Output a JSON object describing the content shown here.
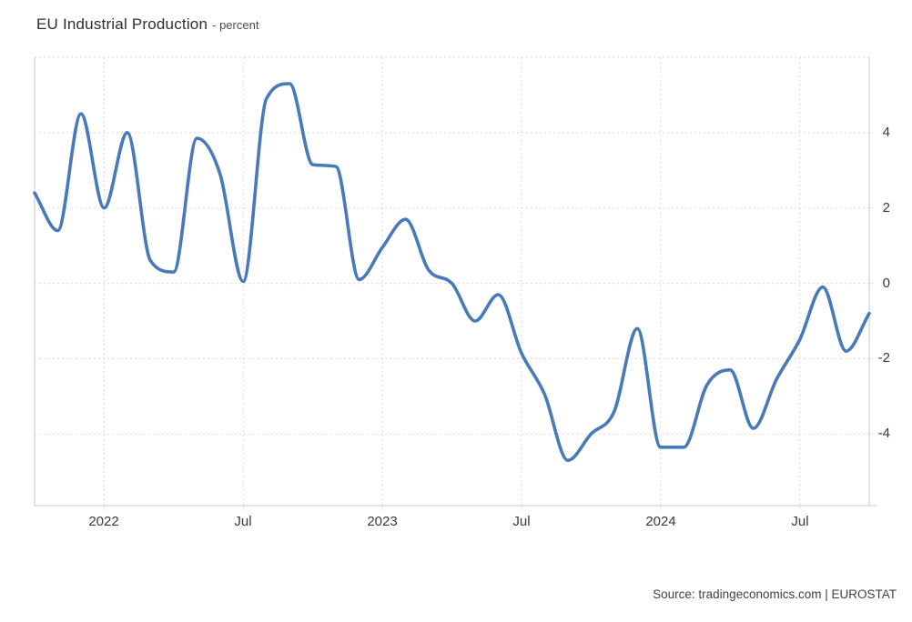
{
  "header": {
    "title": "EU Industrial Production",
    "subtitle": "- percent"
  },
  "footer": {
    "source": "Source: tradingeconomics.com | EUROSTAT"
  },
  "colors": {
    "line": "#4879ba",
    "grid": "#d9d9d9",
    "axis_border": "#e3e3e3",
    "background": "#ffffff",
    "tick_text": "#3a3a3a"
  },
  "chart_data": {
    "type": "line",
    "title": "EU Industrial Production",
    "unit": "percent",
    "xlabel": "",
    "ylabel": "percent",
    "grid": true,
    "legend": false,
    "ylim": [
      -5.9,
      6.0
    ],
    "grid_y_values": [
      6,
      4,
      2,
      0,
      -2,
      -4
    ],
    "y_ticks": [
      {
        "label": "4",
        "value": 4
      },
      {
        "label": "2",
        "value": 2
      },
      {
        "label": "0",
        "value": 0
      },
      {
        "label": "-2",
        "value": -2
      },
      {
        "label": "-4",
        "value": -4
      }
    ],
    "x_ticks": [
      {
        "label": "2022",
        "month_index": 3
      },
      {
        "label": "Jul",
        "month_index": 9
      },
      {
        "label": "2023",
        "month_index": 15
      },
      {
        "label": "Jul",
        "month_index": 21
      },
      {
        "label": "2024",
        "month_index": 27
      },
      {
        "label": "Jul",
        "month_index": 33
      }
    ],
    "x": [
      "2021-10",
      "2021-11",
      "2021-12",
      "2022-01",
      "2022-02",
      "2022-03",
      "2022-04",
      "2022-05",
      "2022-06",
      "2022-07",
      "2022-08",
      "2022-09",
      "2022-10",
      "2022-11",
      "2022-12",
      "2023-01",
      "2023-02",
      "2023-03",
      "2023-04",
      "2023-05",
      "2023-06",
      "2023-07",
      "2023-08",
      "2023-09",
      "2023-10",
      "2023-11",
      "2023-12",
      "2024-01",
      "2024-02",
      "2024-03",
      "2024-04",
      "2024-05",
      "2024-06",
      "2024-07",
      "2024-08",
      "2024-09",
      "2024-10"
    ],
    "values": [
      2.4,
      1.4,
      4.5,
      2.0,
      4.0,
      0.6,
      0.3,
      3.85,
      2.9,
      0.05,
      4.9,
      5.3,
      3.15,
      3.1,
      0.1,
      0.95,
      1.7,
      0.35,
      0.0,
      -1.0,
      -0.3,
      -1.85,
      -2.95,
      -4.7,
      -4.0,
      -3.4,
      -1.2,
      -4.35,
      -4.35,
      -2.7,
      -2.3,
      -3.85,
      -2.55,
      -1.5,
      -0.1,
      -1.8,
      -0.8
    ]
  }
}
